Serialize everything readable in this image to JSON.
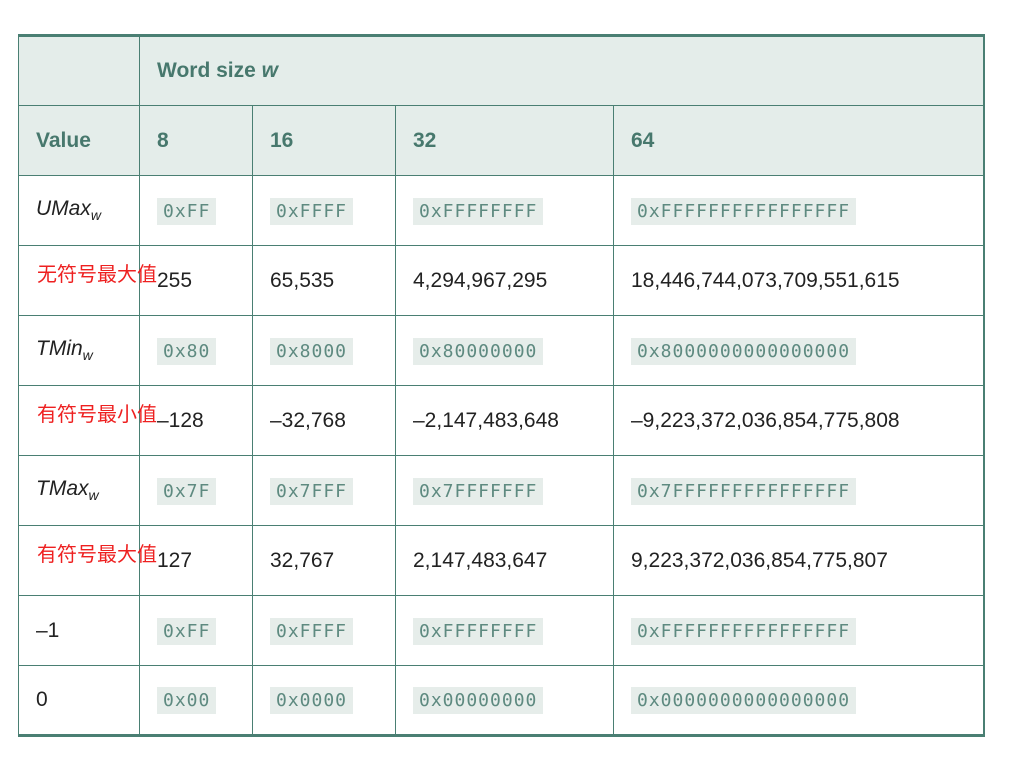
{
  "header": {
    "corner": "",
    "word_size_prefix": "Word size ",
    "word_size_var": "w",
    "value_label": "Value",
    "sizes": [
      "8",
      "16",
      "32",
      "64"
    ]
  },
  "rows": [
    {
      "label_main": "UMax",
      "label_sub": "w",
      "italic": true,
      "note": "",
      "cells": [
        "0xFF",
        "0xFFFF",
        "0xFFFFFFFF",
        "0xFFFFFFFFFFFFFFFF"
      ],
      "code": true
    },
    {
      "label_main": "",
      "label_sub": "",
      "italic": false,
      "note": "无符号最大值",
      "cells": [
        "255",
        "65,535",
        "4,294,967,295",
        "18,446,744,073,709,551,615"
      ],
      "code": false
    },
    {
      "label_main": "TMin",
      "label_sub": "w",
      "italic": true,
      "note": "",
      "cells": [
        "0x80",
        "0x8000",
        "0x80000000",
        "0x8000000000000000"
      ],
      "code": true
    },
    {
      "label_main": "",
      "label_sub": "",
      "italic": false,
      "note": "有符号最小值",
      "cells": [
        "–128",
        "–32,768",
        "–2,147,483,648",
        "–9,223,372,036,854,775,808"
      ],
      "code": false
    },
    {
      "label_main": "TMax",
      "label_sub": "w",
      "italic": true,
      "note": "",
      "cells": [
        "0x7F",
        "0x7FFF",
        "0x7FFFFFFF",
        "0x7FFFFFFFFFFFFFFF"
      ],
      "code": true
    },
    {
      "label_main": "",
      "label_sub": "",
      "italic": false,
      "note": "有符号最大值",
      "cells": [
        "127",
        "32,767",
        "2,147,483,647",
        "9,223,372,036,854,775,807"
      ],
      "code": false
    },
    {
      "label_main": "–1",
      "label_sub": "",
      "italic": false,
      "note": "",
      "cells": [
        "0xFF",
        "0xFFFF",
        "0xFFFFFFFF",
        "0xFFFFFFFFFFFFFFFF"
      ],
      "code": true
    },
    {
      "label_main": "0",
      "label_sub": "",
      "italic": false,
      "note": "",
      "cells": [
        "0x00",
        "0x0000",
        "0x00000000",
        "0x0000000000000000"
      ],
      "code": true
    }
  ]
}
